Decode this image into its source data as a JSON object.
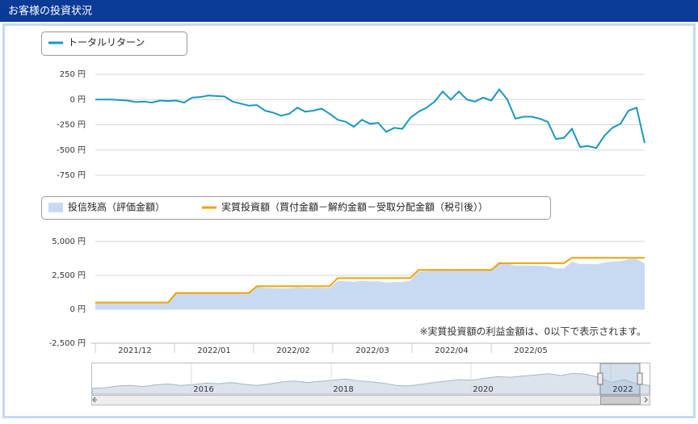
{
  "panel_title": "お客様の投資状況",
  "chart_data": [
    {
      "type": "line",
      "series": [
        {
          "name": "トータルリターン",
          "color": "#1a98c2",
          "values": [
            0,
            0,
            0,
            -5,
            -10,
            -25,
            -20,
            -30,
            -10,
            -15,
            -10,
            -30,
            20,
            25,
            40,
            35,
            30,
            -20,
            -40,
            -60,
            -55,
            -110,
            -130,
            -160,
            -140,
            -80,
            -120,
            -110,
            -90,
            -140,
            -200,
            -220,
            -270,
            -200,
            -240,
            -230,
            -320,
            -280,
            -290,
            -180,
            -120,
            -80,
            -20,
            80,
            0,
            80,
            0,
            -20,
            20,
            -10,
            100,
            0,
            -190,
            -170,
            -170,
            -190,
            -220,
            -390,
            -380,
            -290,
            -470,
            -460,
            -480,
            -360,
            -280,
            -240,
            -110,
            -80,
            -430
          ]
        }
      ],
      "ylim": [
        -750,
        250
      ],
      "yticks": [
        {
          "value": 250,
          "label": "250 円"
        },
        {
          "value": 0,
          "label": "0 円"
        },
        {
          "value": -250,
          "label": "-250 円"
        },
        {
          "value": -500,
          "label": "-500 円"
        },
        {
          "value": -750,
          "label": "-750 円"
        }
      ],
      "grid": true
    },
    {
      "type": "area-line",
      "series": [
        {
          "name": "投信残高（評価金額）",
          "color": "#c8daf2",
          "style": "area",
          "values": [
            500,
            500,
            500,
            495,
            490,
            475,
            480,
            470,
            490,
            485,
            1190,
            1170,
            1220,
            1225,
            1240,
            1235,
            1230,
            1180,
            1160,
            1140,
            1645,
            1590,
            1570,
            1540,
            1560,
            1620,
            1580,
            1590,
            1610,
            1560,
            2100,
            2080,
            2030,
            2100,
            2060,
            2070,
            1980,
            2020,
            2010,
            2120,
            2780,
            2820,
            2880,
            2980,
            2900,
            2980,
            2900,
            2880,
            2920,
            2890,
            3500,
            3400,
            3210,
            3230,
            3230,
            3210,
            3180,
            3010,
            3020,
            3510,
            3330,
            3340,
            3320,
            3440,
            3520,
            3560,
            3690,
            3720,
            3370
          ]
        },
        {
          "name": "実質投資額（買付金額－解約金額－受取分配金額（税引後））",
          "color": "#f5a000",
          "style": "line",
          "values": [
            500,
            500,
            500,
            500,
            500,
            500,
            500,
            500,
            500,
            500,
            1200,
            1200,
            1200,
            1200,
            1200,
            1200,
            1200,
            1200,
            1200,
            1200,
            1700,
            1700,
            1700,
            1700,
            1700,
            1700,
            1700,
            1700,
            1700,
            1700,
            2300,
            2300,
            2300,
            2300,
            2300,
            2300,
            2300,
            2300,
            2300,
            2300,
            2900,
            2900,
            2900,
            2900,
            2900,
            2900,
            2900,
            2900,
            2900,
            2900,
            3400,
            3400,
            3400,
            3400,
            3400,
            3400,
            3400,
            3400,
            3400,
            3800,
            3800,
            3800,
            3800,
            3800,
            3800,
            3800,
            3800,
            3800,
            3800
          ]
        }
      ],
      "ylim": [
        -2500,
        5000
      ],
      "yticks": [
        {
          "value": 5000,
          "label": "5,000 円"
        },
        {
          "value": 2500,
          "label": "2,500 円"
        },
        {
          "value": 0,
          "label": "0 円"
        },
        {
          "value": -2500,
          "label": "-2,500 円"
        }
      ],
      "grid": true,
      "x_labels": [
        "2021/12",
        "2022/01",
        "2022/02",
        "2022/03",
        "2022/04",
        "2022/05"
      ],
      "annotation": "※実質投資額の利益金額は、0以下で表示されます。"
    },
    {
      "type": "navigator",
      "x_labels": [
        "2016",
        "2018",
        "2020",
        "2022"
      ],
      "ylim": [
        0,
        100
      ],
      "values": [
        20,
        22,
        28,
        30,
        26,
        32,
        35,
        30,
        33,
        38,
        36,
        40,
        34,
        30,
        35,
        42,
        45,
        40,
        44,
        48,
        52,
        46,
        42,
        38,
        30,
        28,
        34,
        40,
        45,
        50,
        48,
        55,
        60,
        58,
        62,
        66,
        70,
        64,
        72,
        68,
        58,
        40,
        50,
        35,
        30
      ]
    }
  ]
}
